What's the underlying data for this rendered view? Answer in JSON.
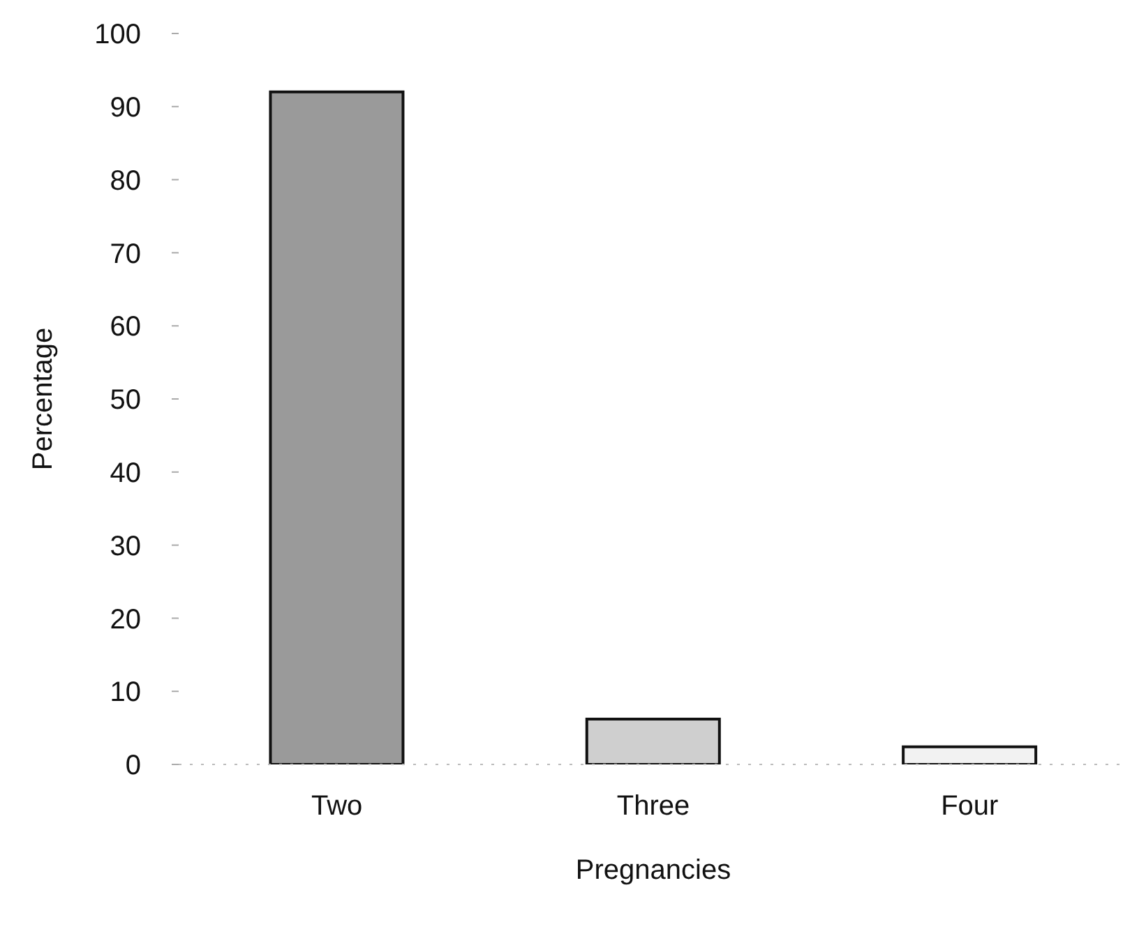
{
  "chart_data": {
    "type": "bar",
    "xlabel": "Pregnancies",
    "ylabel": "Percentage",
    "categories": [
      "Two",
      "Three",
      "Four"
    ],
    "values": [
      92,
      6.2,
      2.4
    ],
    "colors": [
      "#9a9a9a",
      "#cfcfcf",
      "#f2f2f2"
    ],
    "ylim": [
      0,
      100
    ],
    "yticks": [
      0,
      10,
      20,
      30,
      40,
      50,
      60,
      70,
      80,
      90,
      100
    ],
    "grid": false,
    "legend": false
  }
}
